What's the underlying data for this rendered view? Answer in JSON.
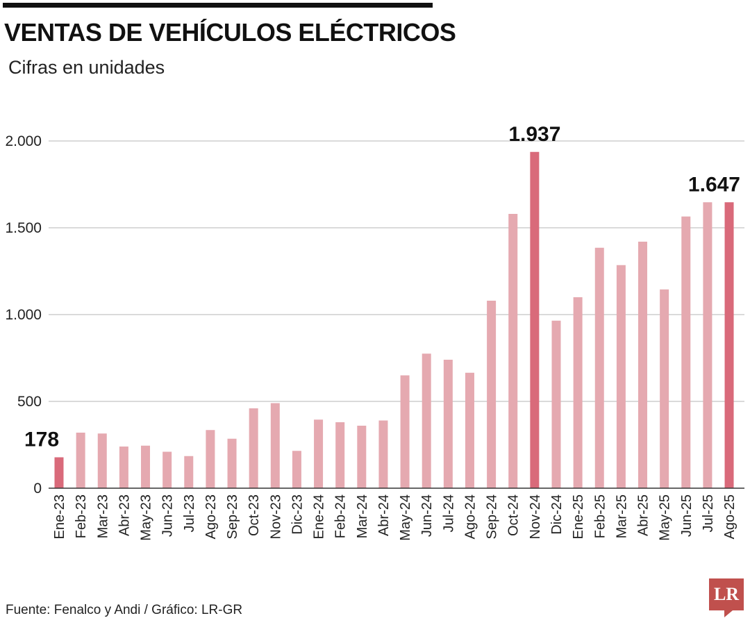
{
  "header": {
    "title": "VENTAS DE VEHÍCULOS ELÉCTRICOS",
    "subtitle": "Cifras en unidades"
  },
  "footer": {
    "source": "Fuente: Fenalco y Andi / Gráfico: LR-GR",
    "logo_text": "LR"
  },
  "colors": {
    "bar": "#e5a9b0",
    "highlight": "#d96a7a",
    "grid": "#b5b5b5",
    "axis": "#333333",
    "logo": "#c0504d"
  },
  "chart_data": {
    "type": "bar",
    "title": "VENTAS DE VEHÍCULOS ELÉCTRICOS",
    "subtitle": "Cifras en unidades",
    "xlabel": "",
    "ylabel": "",
    "ylim": [
      0,
      2000
    ],
    "yticks": [
      0,
      500,
      1000,
      1500,
      2000
    ],
    "ytick_labels": [
      "0",
      "500",
      "1.000",
      "1.500",
      "2.000"
    ],
    "grid": true,
    "categories": [
      "Ene-23",
      "Feb-23",
      "Mar-23",
      "Abr-23",
      "May-23",
      "Jun-23",
      "Jul-23",
      "Ago-23",
      "Sep-23",
      "Oct-23",
      "Nov-23",
      "Dic-23",
      "Ene-24",
      "Feb-24",
      "Mar-24",
      "Abr-24",
      "May-24",
      "Jun-24",
      "Jul-24",
      "Ago-24",
      "Sep-24",
      "Oct-24",
      "Nov-24",
      "Dic-24",
      "Ene-25",
      "Feb-25",
      "Mar-25",
      "Abr-25",
      "May-25",
      "Jun-25",
      "Jul-25",
      "Ago-25"
    ],
    "values": [
      178,
      320,
      315,
      240,
      245,
      210,
      185,
      335,
      285,
      460,
      490,
      215,
      395,
      380,
      360,
      390,
      650,
      775,
      740,
      665,
      1080,
      1580,
      1937,
      965,
      1100,
      1385,
      1285,
      1420,
      1145,
      1565,
      1647,
      1647
    ],
    "highlighted": [
      "Ene-23",
      "Nov-24",
      "Ago-25"
    ],
    "data_labels": [
      {
        "category": "Ene-23",
        "text": "178"
      },
      {
        "category": "Nov-24",
        "text": "1.937"
      },
      {
        "category": "Ago-25",
        "text": "1.647"
      }
    ]
  }
}
